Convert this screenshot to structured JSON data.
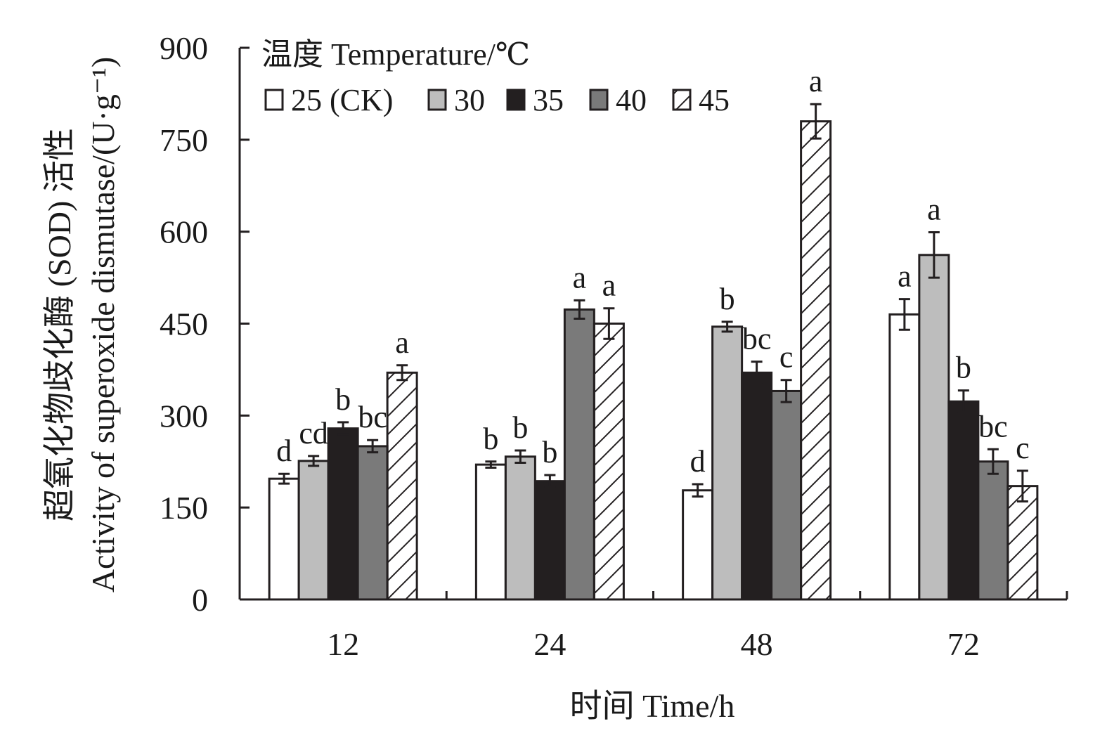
{
  "chart_data": {
    "type": "bar",
    "title": "",
    "xlabel": "时间 Time/h",
    "ylabel": [
      "超氧化物歧化酶 (SOD) 活性",
      "Activity of superoxide dismutase/(U·g⁻¹)"
    ],
    "categories": [
      "12",
      "24",
      "48",
      "72"
    ],
    "ylim": [
      0,
      900
    ],
    "yticks": [
      0,
      150,
      300,
      450,
      600,
      750,
      900
    ],
    "legend": {
      "title": "温度 Temperature/℃",
      "position": "top-left",
      "labels": [
        "25 (CK)",
        "30",
        "35",
        "40",
        "45"
      ]
    },
    "series": [
      {
        "name": "25 (CK)",
        "fill": "#ffffff",
        "pattern": "none",
        "values": [
          197,
          220,
          178,
          465
        ],
        "errors": [
          8,
          5,
          10,
          25
        ],
        "letters": [
          "d",
          "b",
          "d",
          "a"
        ]
      },
      {
        "name": "30",
        "fill": "#bdbdbd",
        "pattern": "none",
        "values": [
          226,
          233,
          445,
          562
        ],
        "errors": [
          8,
          10,
          8,
          37
        ],
        "letters": [
          "cd",
          "b",
          "b",
          "a"
        ]
      },
      {
        "name": "35",
        "fill": "#231f20",
        "pattern": "none",
        "values": [
          279,
          193,
          370,
          323
        ],
        "errors": [
          10,
          10,
          18,
          18
        ],
        "letters": [
          "b",
          "b",
          "bc",
          "b"
        ]
      },
      {
        "name": "40",
        "fill": "#7a7a7a",
        "pattern": "none",
        "values": [
          250,
          473,
          340,
          225
        ],
        "errors": [
          10,
          15,
          18,
          20
        ],
        "letters": [
          "bc",
          "a",
          "c",
          "bc"
        ]
      },
      {
        "name": "45",
        "fill": "#ffffff",
        "pattern": "diagonal-hatch",
        "values": [
          370,
          450,
          780,
          185
        ],
        "errors": [
          12,
          25,
          28,
          25
        ],
        "letters": [
          "a",
          "a",
          "a",
          "c"
        ]
      }
    ]
  }
}
